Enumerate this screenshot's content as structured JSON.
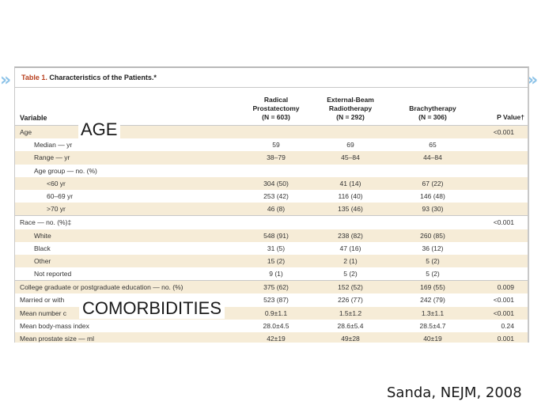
{
  "nav": {
    "left_glyph": "»",
    "right_glyph": "»"
  },
  "table": {
    "title_num": "Table 1.",
    "title_text": " Characteristics of the Patients.*",
    "headers": {
      "variable": "Variable",
      "c1_line1": "Radical",
      "c1_line2": "Prostatectomy",
      "c1_line3": "(N = 603)",
      "c2_line1": "External-Beam",
      "c2_line2": "Radiotherapy",
      "c2_line3": "(N = 292)",
      "c3_line1": "Brachytherapy",
      "c3_line2": "(N = 306)",
      "c4": "P Value†"
    },
    "rows": [
      {
        "label": "Age",
        "v1": "",
        "v2": "",
        "v3": "",
        "p": "<0.001"
      },
      {
        "label": "Median — yr",
        "v1": "59",
        "v2": "69",
        "v3": "65",
        "p": ""
      },
      {
        "label": "Range — yr",
        "v1": "38–79",
        "v2": "45–84",
        "v3": "44–84",
        "p": ""
      },
      {
        "label": "Age group — no. (%)",
        "v1": "",
        "v2": "",
        "v3": "",
        "p": ""
      },
      {
        "label": "<60 yr",
        "v1": "304 (50)",
        "v2": "41 (14)",
        "v3": "67 (22)",
        "p": ""
      },
      {
        "label": "60–69 yr",
        "v1": "253 (42)",
        "v2": "116 (40)",
        "v3": "146 (48)",
        "p": ""
      },
      {
        "label": ">70 yr",
        "v1": "46 (8)",
        "v2": "135 (46)",
        "v3": "93 (30)",
        "p": ""
      },
      {
        "label": "Race — no. (%)‡",
        "v1": "",
        "v2": "",
        "v3": "",
        "p": "<0.001"
      },
      {
        "label": "White",
        "v1": "548 (91)",
        "v2": "238 (82)",
        "v3": "260 (85)",
        "p": ""
      },
      {
        "label": "Black",
        "v1": "31 (5)",
        "v2": "47 (16)",
        "v3": "36 (12)",
        "p": ""
      },
      {
        "label": "Other",
        "v1": "15 (2)",
        "v2": "2 (1)",
        "v3": "5 (2)",
        "p": ""
      },
      {
        "label": "Not reported",
        "v1": "9 (1)",
        "v2": "5 (2)",
        "v3": "5 (2)",
        "p": ""
      },
      {
        "label": "College graduate or postgraduate education — no. (%)",
        "v1": "375 (62)",
        "v2": "152 (52)",
        "v3": "169 (55)",
        "p": "0.009"
      },
      {
        "label": "Married or with",
        "v1": "523 (87)",
        "v2": "226 (77)",
        "v3": "242 (79)",
        "p": "<0.001"
      },
      {
        "label": "Mean number c",
        "v1": "0.9±1.1",
        "v2": "1.5±1.2",
        "v3": "1.3±1.1",
        "p": "<0.001"
      },
      {
        "label": "Mean body-mass index",
        "v1": "28.0±4.5",
        "v2": "28.6±5.4",
        "v3": "28.5±4.7",
        "p": "0.24"
      },
      {
        "label": "Mean prostate size — ml",
        "v1": "42±19",
        "v2": "49±28",
        "v3": "40±19",
        "p": "0.001"
      }
    ]
  },
  "overlays": {
    "age": "AGE",
    "comorbidities": "COMORBIDITIES"
  },
  "citation": "Sanda, NEJM, 2008"
}
